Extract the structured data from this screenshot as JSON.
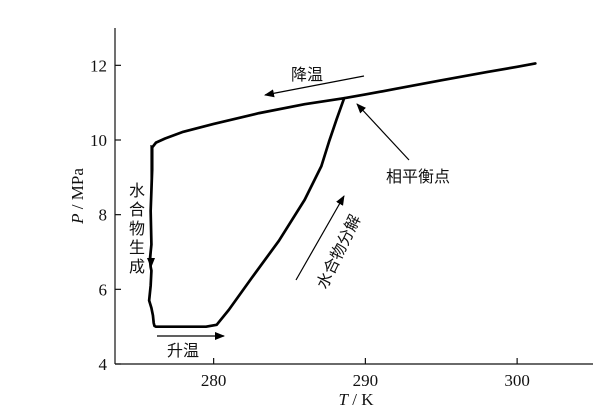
{
  "chart_data": {
    "type": "line",
    "title": "",
    "xlabel_var": "T",
    "xlabel_unit": " / K",
    "ylabel_var": "P",
    "ylabel_unit": " / MPa",
    "xlim": [
      273.5,
      305
    ],
    "ylim": [
      4,
      13
    ],
    "x_ticks": [
      280,
      290,
      300
    ],
    "y_ticks": [
      4,
      6,
      8,
      10,
      12
    ],
    "x_tick_labels": [
      "280",
      "290",
      "300"
    ],
    "y_tick_labels": [
      "4",
      "6",
      "8",
      "10",
      "12"
    ],
    "grid": false,
    "series": [
      {
        "name": "",
        "x": [
          301.2,
          300,
          298,
          295,
          292,
          290,
          288.6,
          286,
          283,
          280,
          278,
          276.8,
          276.2,
          275.95,
          275.95,
          275.85,
          275.9,
          275.8,
          275.85,
          275.9,
          275.85,
          275.75,
          275.9,
          276.0,
          276.05,
          276.1,
          276.2,
          278,
          279.5,
          280.2,
          281,
          282.5,
          284.3,
          286,
          287.1,
          287.6,
          288.1,
          288.6
        ],
        "y": [
          12.05,
          11.96,
          11.82,
          11.6,
          11.37,
          11.22,
          11.12,
          10.96,
          10.72,
          10.43,
          10.22,
          10.04,
          9.93,
          9.8,
          9.2,
          8.1,
          7.2,
          6.8,
          6.6,
          6.5,
          6.1,
          5.7,
          5.5,
          5.3,
          5.1,
          5.02,
          5.0,
          5.0,
          5.0,
          5.05,
          5.45,
          6.3,
          7.3,
          8.4,
          9.3,
          9.95,
          10.55,
          11.12
        ]
      }
    ],
    "annotations": [
      {
        "text": "降温",
        "orientation": "horizontal",
        "arrow_direction": "left"
      },
      {
        "text": "相平衡点",
        "orientation": "horizontal",
        "arrow_direction": "up-left"
      },
      {
        "text": "水合物生成",
        "orientation": "vertical",
        "arrow_direction": "down"
      },
      {
        "text": "水合物分解",
        "orientation": "rotated",
        "arrow_direction": "up-right"
      },
      {
        "text": "升温",
        "orientation": "horizontal",
        "arrow_direction": "right"
      }
    ]
  }
}
